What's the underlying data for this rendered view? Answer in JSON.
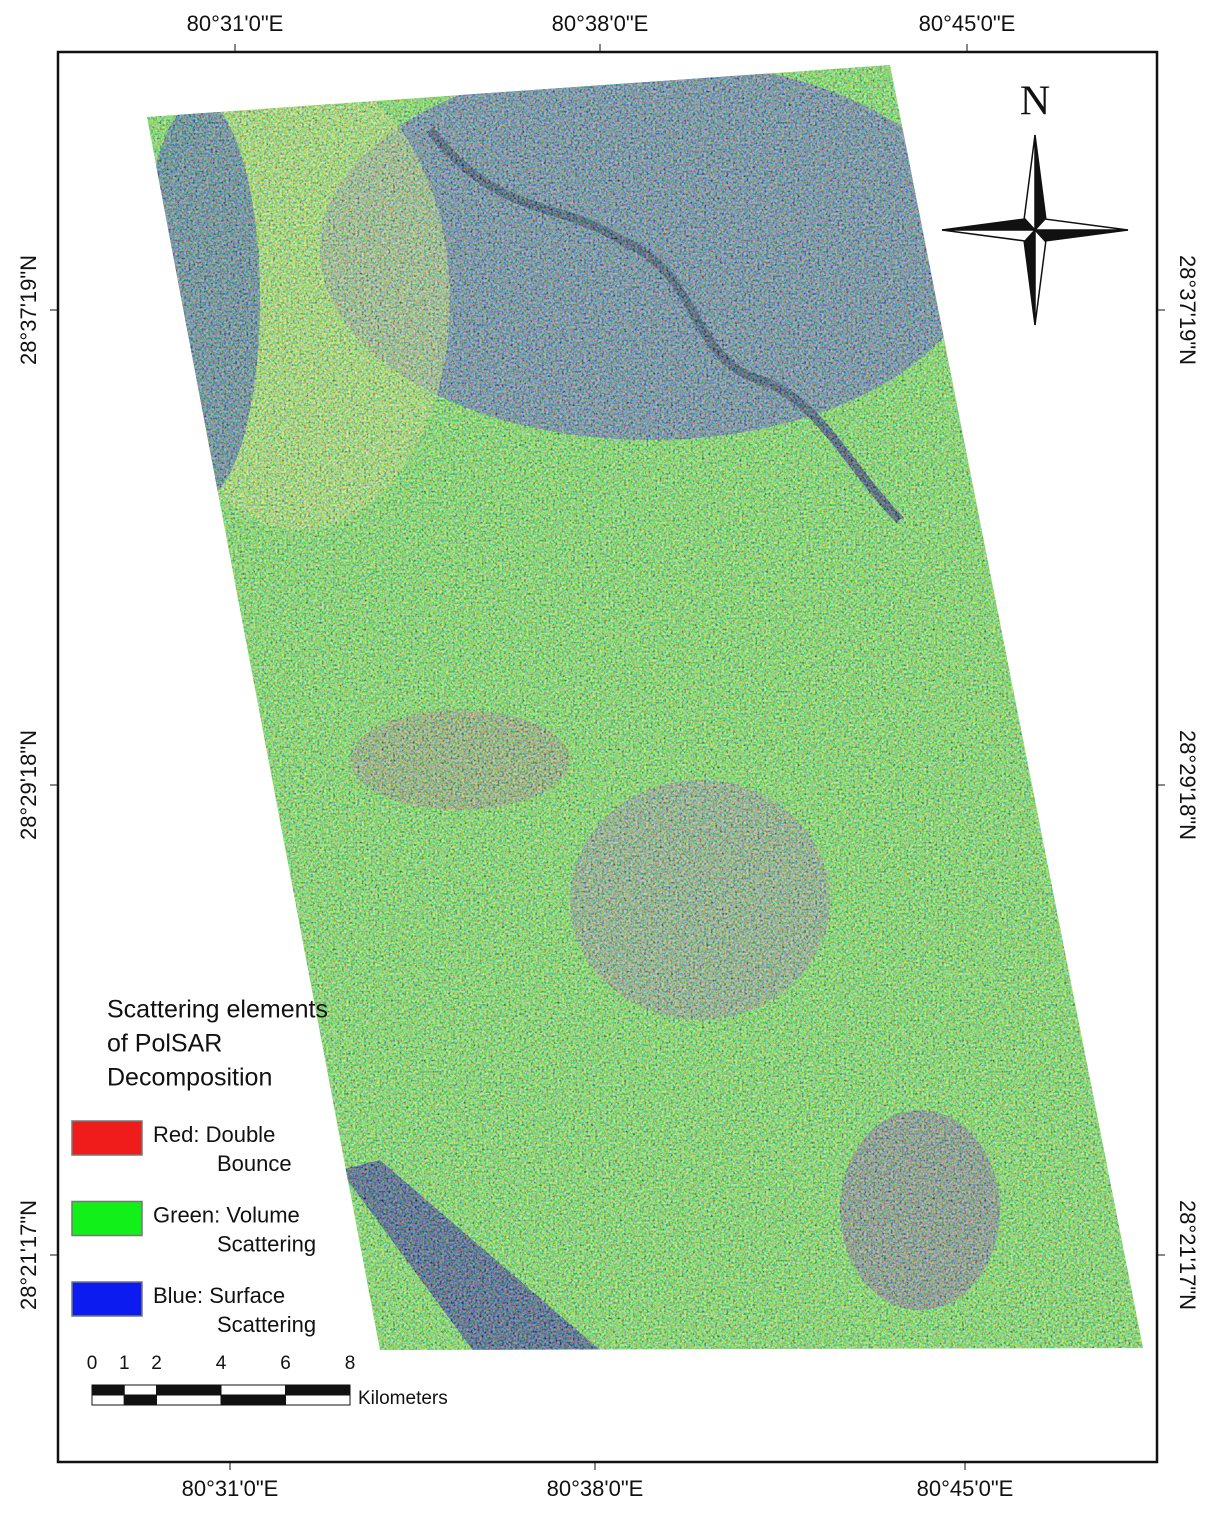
{
  "graticule": {
    "top": [
      "80°31'0\"E",
      "80°38'0\"E",
      "80°45'0\"E"
    ],
    "bottom": [
      "80°31'0\"E",
      "80°38'0\"E",
      "80°45'0\"E"
    ],
    "left": [
      "28°37'19\"N",
      "28°29'18\"N",
      "28°21'17\"N"
    ],
    "right": [
      "28°37'19\"N",
      "28°29'18\"N",
      "28°21'17\"N"
    ]
  },
  "north_arrow": {
    "label": "N"
  },
  "legend": {
    "title": [
      "Scattering elements",
      "of PolSAR",
      "Decomposition"
    ],
    "items": [
      {
        "lines": [
          "Red: Double",
          "Bounce"
        ],
        "color": "#f01c1c"
      },
      {
        "lines": [
          "Green: Volume",
          "Scattering"
        ],
        "color": "#12f01a"
      },
      {
        "lines": [
          "Blue: Surface",
          "Scattering"
        ],
        "color": "#0c1cf0"
      }
    ]
  },
  "scale_bar": {
    "ticks": [
      0,
      1,
      2,
      4,
      6,
      8
    ],
    "unit": "Kilometers"
  }
}
